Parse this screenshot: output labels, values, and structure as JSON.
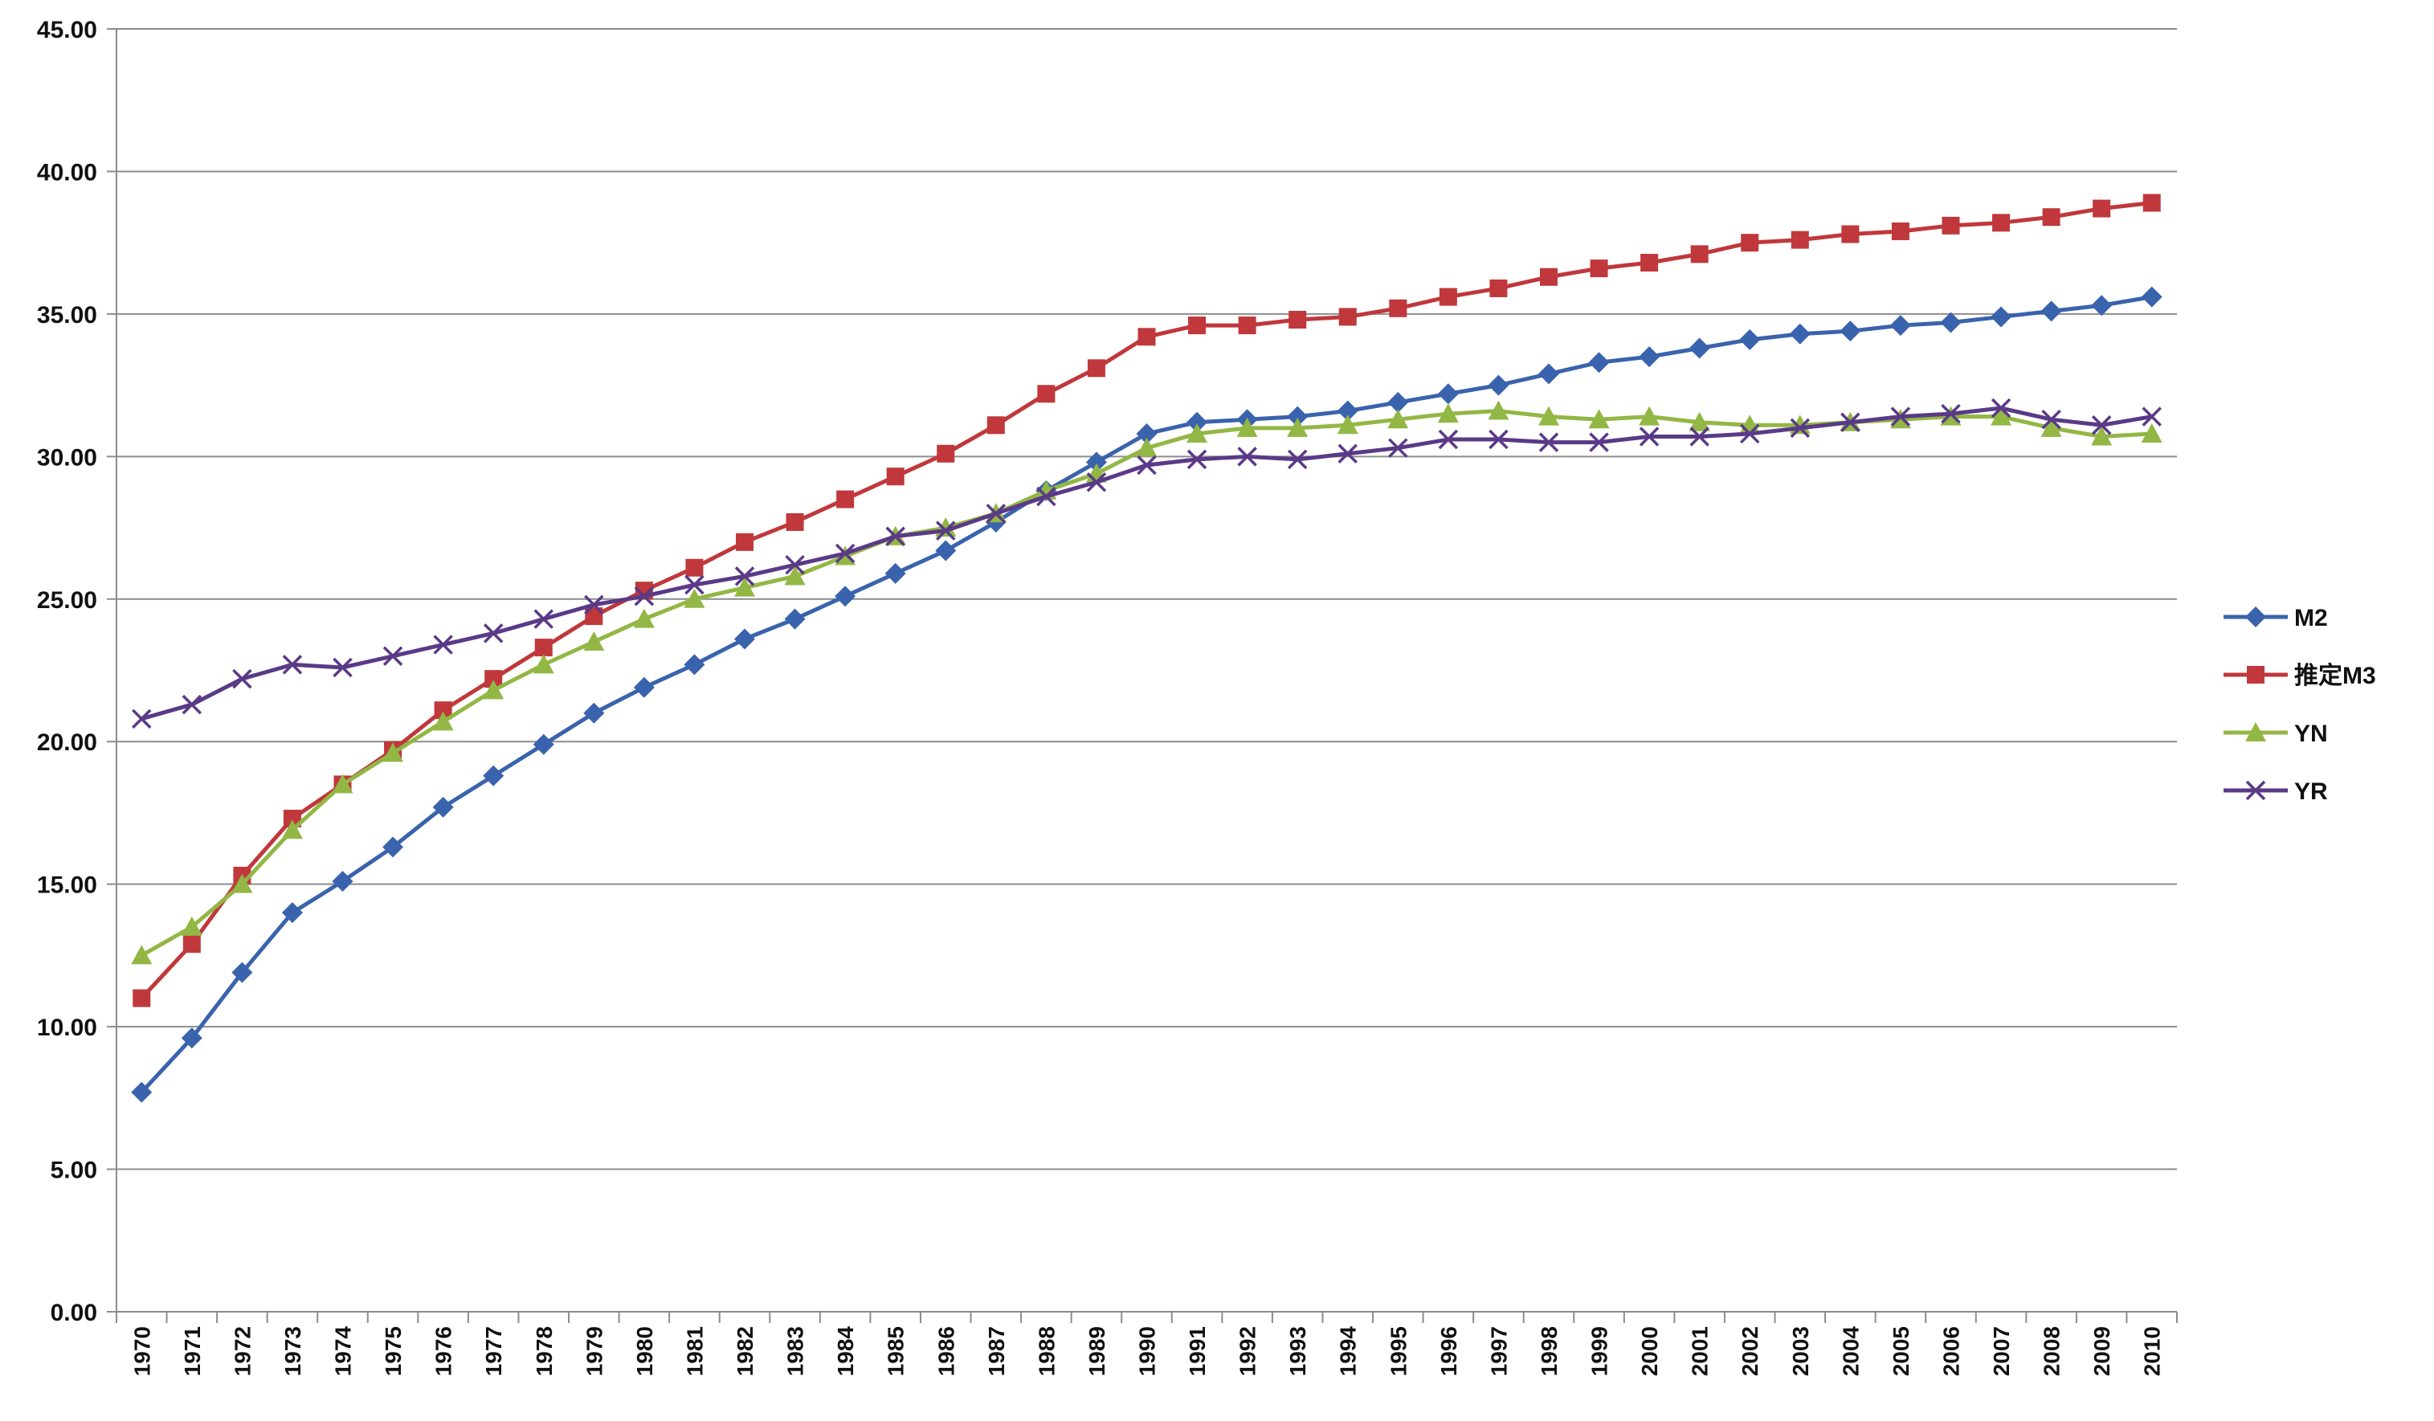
{
  "chart_data": {
    "type": "line",
    "title": "",
    "xlabel": "",
    "ylabel": "",
    "ylim": [
      0,
      45
    ],
    "y_tick_step": 5,
    "y_tick_labels": [
      "0.00",
      "5.00",
      "10.00",
      "15.00",
      "20.00",
      "25.00",
      "30.00",
      "35.00",
      "40.00",
      "45.00"
    ],
    "grid": "horizontal",
    "legend_position": "right",
    "x": [
      "1970",
      "1971",
      "1972",
      "1973",
      "1974",
      "1975",
      "1976",
      "1977",
      "1978",
      "1979",
      "1980",
      "1981",
      "1982",
      "1983",
      "1984",
      "1985",
      "1986",
      "1987",
      "1988",
      "1989",
      "1990",
      "1991",
      "1992",
      "1993",
      "1994",
      "1995",
      "1996",
      "1997",
      "1998",
      "1999",
      "2000",
      "2001",
      "2002",
      "2003",
      "2004",
      "2005",
      "2006",
      "2007",
      "2008",
      "2009",
      "2010"
    ],
    "series": [
      {
        "name": "M2",
        "color": "#3a63ad",
        "marker": "diamond",
        "values": [
          7.7,
          9.6,
          11.9,
          14.0,
          15.1,
          16.3,
          17.7,
          18.8,
          19.9,
          21.0,
          21.9,
          22.7,
          23.6,
          24.3,
          25.1,
          25.9,
          26.7,
          27.7,
          28.8,
          29.8,
          30.8,
          31.2,
          31.3,
          31.4,
          31.6,
          31.9,
          32.2,
          32.5,
          32.9,
          33.3,
          33.5,
          33.8,
          34.1,
          34.3,
          34.4,
          34.6,
          34.7,
          34.9,
          35.1,
          35.3,
          35.6
        ]
      },
      {
        "name": "推定M3",
        "color": "#c0383b",
        "marker": "square",
        "values": [
          11.0,
          12.9,
          15.3,
          17.3,
          18.5,
          19.7,
          21.1,
          22.2,
          23.3,
          24.4,
          25.3,
          26.1,
          27.0,
          27.7,
          28.5,
          29.3,
          30.1,
          31.1,
          32.2,
          33.1,
          34.2,
          34.6,
          34.6,
          34.8,
          34.9,
          35.2,
          35.6,
          35.9,
          36.3,
          36.6,
          36.8,
          37.1,
          37.5,
          37.6,
          37.8,
          37.9,
          38.1,
          38.2,
          38.4,
          38.7,
          38.9
        ]
      },
      {
        "name": "YN",
        "color": "#92b744",
        "marker": "triangle",
        "values": [
          12.5,
          13.5,
          15.0,
          16.9,
          18.5,
          19.6,
          20.7,
          21.8,
          22.7,
          23.5,
          24.3,
          25.0,
          25.4,
          25.8,
          26.5,
          27.2,
          27.5,
          28.0,
          28.8,
          29.4,
          30.3,
          30.8,
          31.0,
          31.0,
          31.1,
          31.3,
          31.5,
          31.6,
          31.4,
          31.3,
          31.4,
          31.2,
          31.1,
          31.1,
          31.2,
          31.3,
          31.4,
          31.4,
          31.0,
          30.7,
          30.8
        ]
      },
      {
        "name": "YR",
        "color": "#5a3a87",
        "marker": "x",
        "values": [
          20.8,
          21.3,
          22.2,
          22.7,
          22.6,
          23.0,
          23.4,
          23.8,
          24.3,
          24.8,
          25.1,
          25.5,
          25.8,
          26.2,
          26.6,
          27.2,
          27.4,
          28.0,
          28.6,
          29.1,
          29.7,
          29.9,
          30.0,
          29.9,
          30.1,
          30.3,
          30.6,
          30.6,
          30.5,
          30.5,
          30.7,
          30.7,
          30.8,
          31.0,
          31.2,
          31.4,
          31.5,
          31.7,
          31.3,
          31.1,
          31.4
        ]
      }
    ]
  }
}
